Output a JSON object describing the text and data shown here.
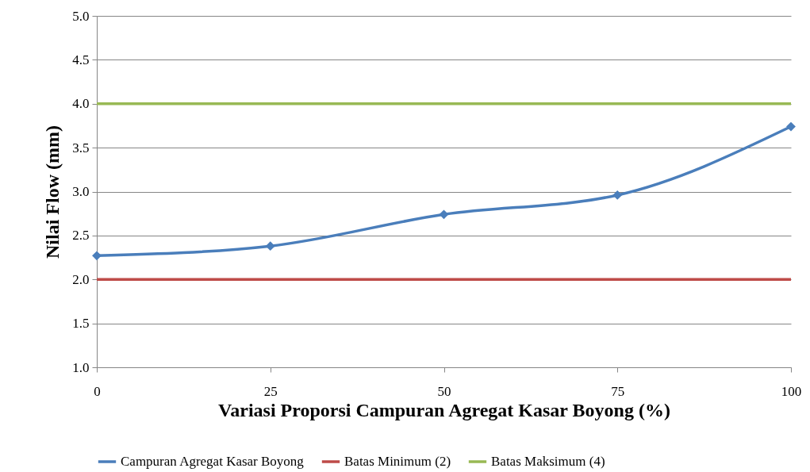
{
  "chart_data": {
    "type": "line",
    "xlabel": "Variasi Proporsi Campuran Agregat Kasar Boyong (%)",
    "ylabel": "Nilai Flow (mm)",
    "x": [
      0,
      25,
      50,
      75,
      100
    ],
    "series": [
      {
        "name": "Campuran Agregat Kasar Boyong",
        "color": "#4a7ebb",
        "values": [
          2.27,
          2.38,
          2.74,
          2.96,
          3.74
        ]
      }
    ],
    "ref_lines": [
      {
        "axis": "y",
        "value": 2,
        "label": "Batas Minimum (2)",
        "color": "#be4b48"
      },
      {
        "axis": "y",
        "value": 4,
        "label": "Batas Maksimum (4)",
        "color": "#98b954"
      }
    ],
    "xlim": [
      0,
      100
    ],
    "xticks": [
      0,
      25,
      50,
      75,
      100
    ],
    "ylim": [
      1,
      5
    ],
    "yticks": [
      {
        "value": 1,
        "label": "1.0"
      },
      {
        "value": 1.5,
        "label": "1.5"
      },
      {
        "value": 2,
        "label": "2.0"
      },
      {
        "value": 2.5,
        "label": "2.5"
      },
      {
        "value": 3,
        "label": "3.0"
      },
      {
        "value": 3.5,
        "label": "3.5"
      },
      {
        "value": 4,
        "label": "4.0"
      },
      {
        "value": 4.5,
        "label": "4.5"
      },
      {
        "value": 5,
        "label": "5.0"
      }
    ],
    "grid": "y",
    "legend": "bottom",
    "marker": "diamond",
    "line_style": "solid"
  }
}
